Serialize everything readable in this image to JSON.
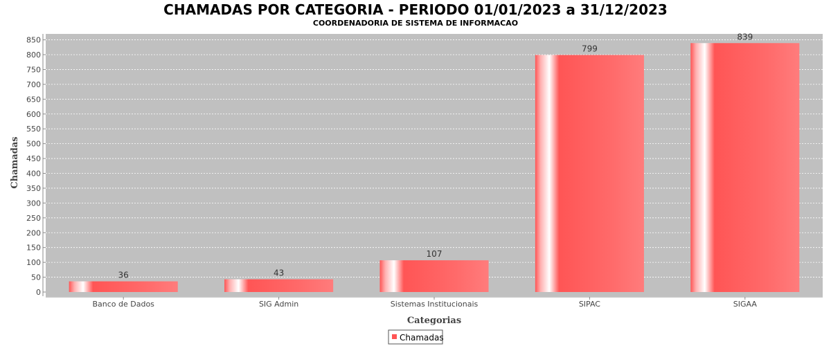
{
  "chart_data": {
    "type": "bar",
    "title": "CHAMADAS POR CATEGORIA - PERIODO 01/01/2023 a 31/12/2023",
    "subtitle": "COORDENADORIA DE SISTEMA DE INFORMACAO",
    "xlabel": "Categorias",
    "ylabel": "Chamadas",
    "categories": [
      "Banco de Dados",
      "SIG Admin",
      "Sistemas Institucionais",
      "SIPAC",
      "SIGAA"
    ],
    "series": [
      {
        "name": "Chamadas",
        "values": [
          36,
          43,
          107,
          799,
          839
        ],
        "color": "#ff5555"
      }
    ],
    "ylim": [
      0,
      870
    ],
    "yticks": [
      0,
      50,
      100,
      150,
      200,
      250,
      300,
      350,
      400,
      450,
      500,
      550,
      600,
      650,
      700,
      750,
      800,
      850
    ],
    "grid": true,
    "legend_position": "bottom-center",
    "plot_background": "#c0c0c0"
  }
}
